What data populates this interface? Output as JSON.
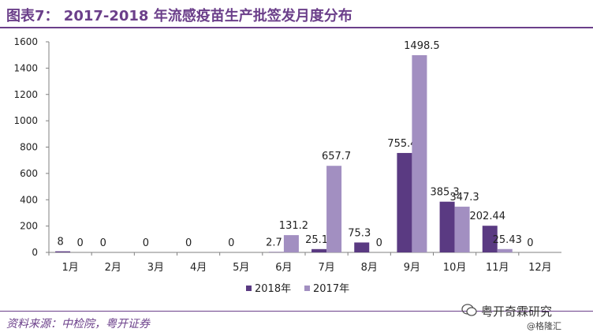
{
  "figure_title": "图表7： 2017-2018 年流感疫苗生产批签发月度分布",
  "source_text": "资料来源：中检院，粤开证券",
  "brand_text": "粤开奇霖研究",
  "watermark_text": "@格隆汇",
  "colors": {
    "series_2018": "#5a3a82",
    "series_2017": "#a28fc1",
    "title": "#6b3f8a",
    "axis": "#808080"
  },
  "chart_data": {
    "type": "bar",
    "categories": [
      "1月",
      "2月",
      "3月",
      "4月",
      "5月",
      "6月",
      "7月",
      "8月",
      "9月",
      "10月",
      "11月",
      "12月"
    ],
    "series": [
      {
        "name": "2018年",
        "values": [
          8,
          0,
          0,
          0,
          0,
          2.7,
          25.1,
          75.3,
          755.4,
          385.3,
          202.44,
          0
        ],
        "labels": [
          "8",
          "0",
          "0",
          "0",
          "0",
          "2.7",
          "25.1",
          "75.3",
          "755.4",
          "385.3",
          "202.44",
          "0"
        ]
      },
      {
        "name": "2017年",
        "values": [
          0,
          null,
          null,
          null,
          null,
          131.2,
          657.7,
          0,
          1498.5,
          347.3,
          25.43,
          null
        ],
        "labels": [
          "0",
          "",
          "",
          "",
          "",
          "131.2",
          "657.7",
          "0",
          "1498.5",
          "347.3",
          "25.43",
          ""
        ]
      }
    ],
    "yticks": [
      "0",
      "200",
      "400",
      "600",
      "800",
      "1000",
      "1200",
      "1400",
      "1600"
    ],
    "ylim": [
      0,
      1600
    ],
    "legend_position": "bottom",
    "grid": false
  }
}
